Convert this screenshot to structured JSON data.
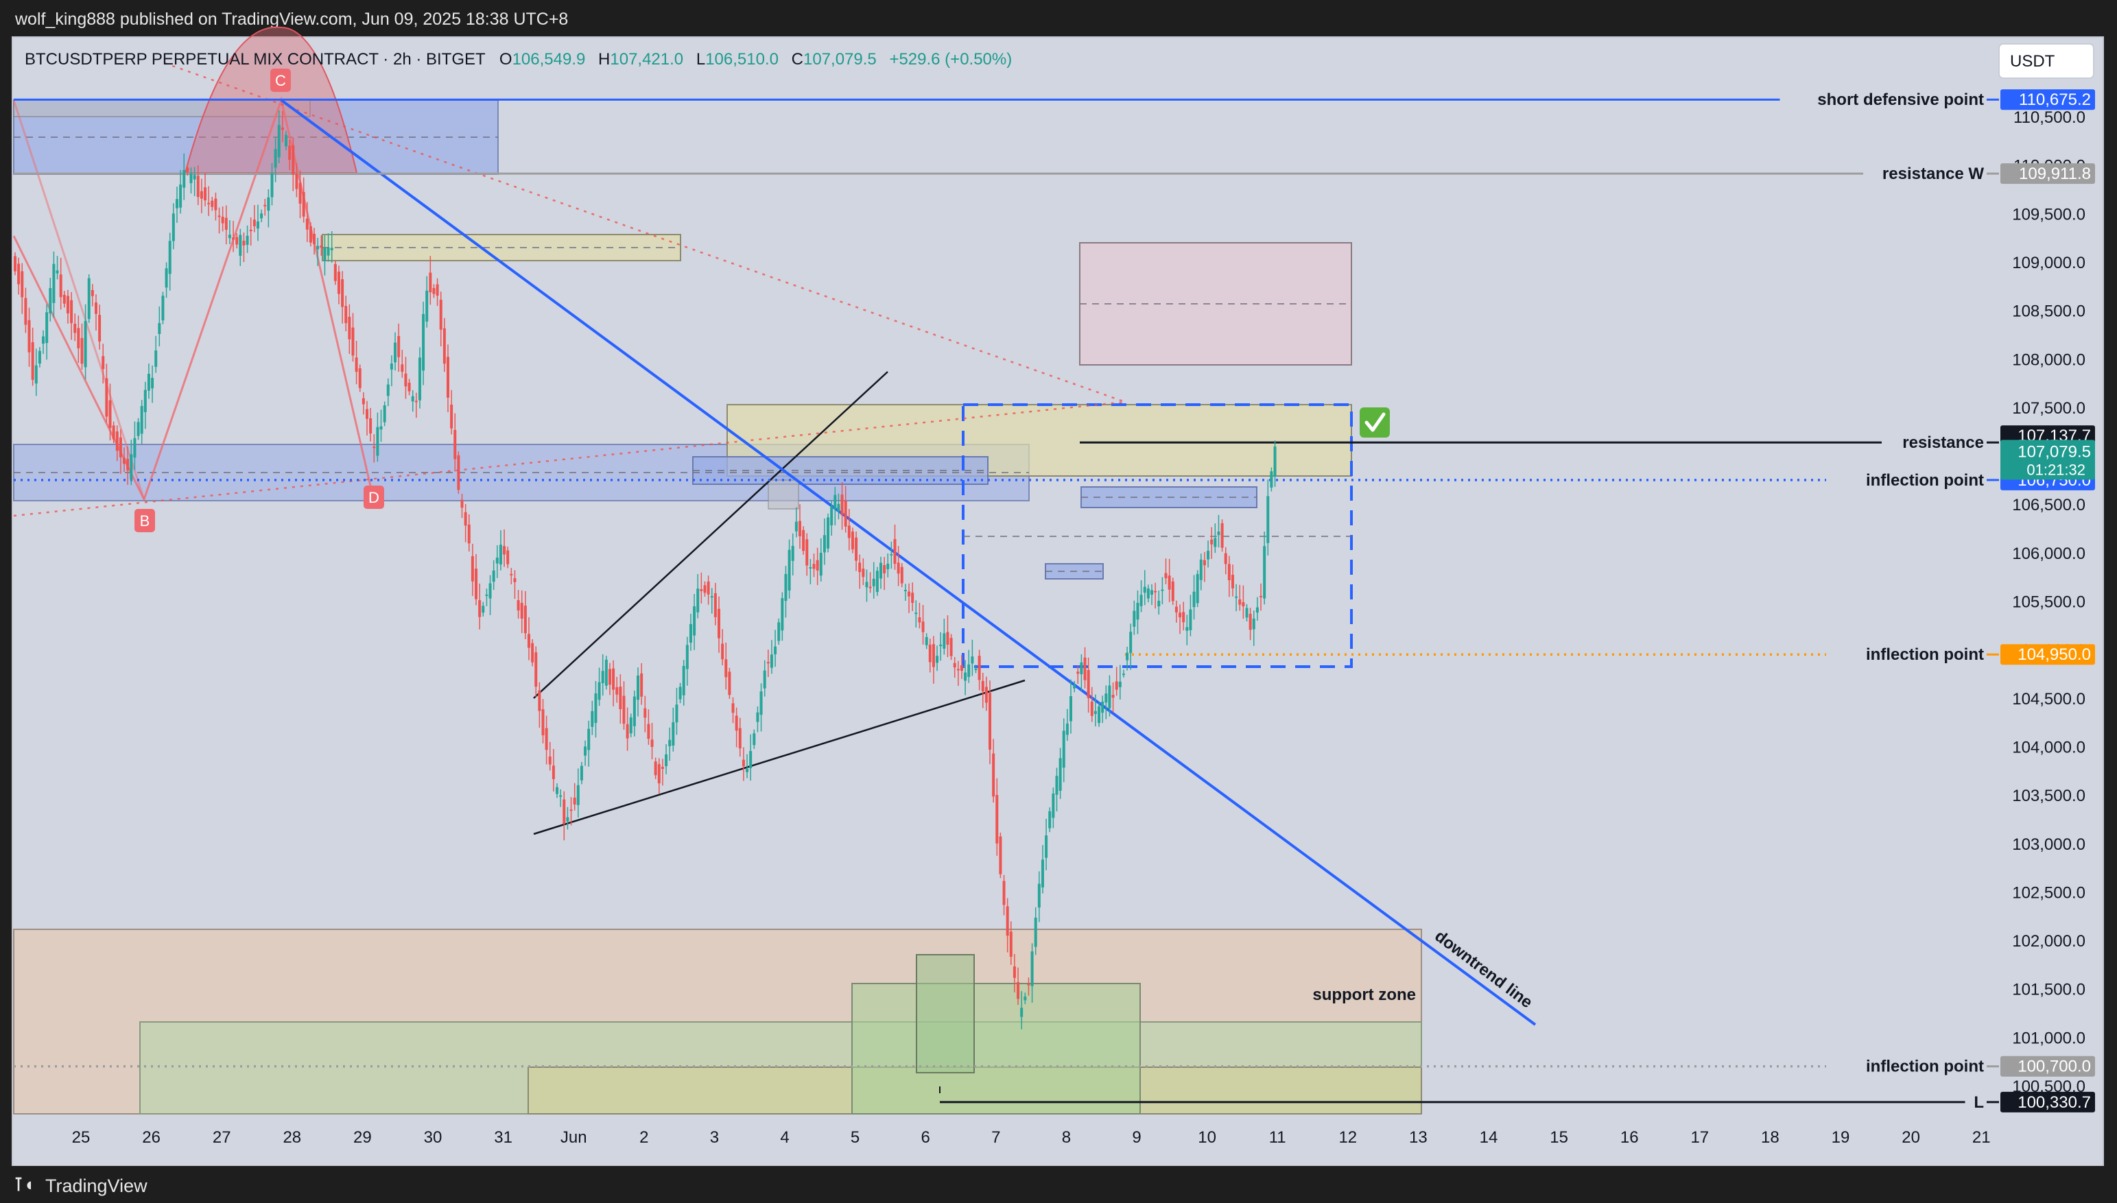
{
  "header": {
    "published": "wolf_king888 published on TradingView.com, Jun 09, 2025 18:38 UTC+8"
  },
  "footer": {
    "brand": "TradingView"
  },
  "legend": {
    "symbol": "BTCUSDTPERP PERPETUAL MIX CONTRACT · 2h · BITGET",
    "o_label": "O",
    "o": "106,549.9",
    "h_label": "H",
    "h": "107,421.0",
    "l_label": "L",
    "l": "106,510.0",
    "c_label": "C",
    "c": "107,079.5",
    "change": "+529.6 (+0.50%)"
  },
  "currency_button": "USDT",
  "colors": {
    "chart_bg": "#d2d6e0",
    "up": "#26a69a",
    "down": "#ef5350",
    "blue_line": "#2962ff",
    "orange": "#ff9800",
    "gray_label": "#9e9e9e",
    "black_label": "#131722"
  },
  "check_icon": "check-icon",
  "chart_data": {
    "type": "candlestick",
    "yaxis": {
      "ticks": [
        "110,500.0",
        "110,000.0",
        "109,500.0",
        "109,000.0",
        "108,500.0",
        "108,000.0",
        "107,500.0",
        "107,000.0",
        "106,500.0",
        "106,000.0",
        "105,500.0",
        "105,000.0",
        "104,500.0",
        "104,000.0",
        "103,500.0",
        "103,000.0",
        "102,500.0",
        "102,000.0",
        "101,500.0",
        "101,000.0",
        "100,500.0"
      ],
      "range": [
        100000,
        111000
      ]
    },
    "xaxis": {
      "ticks": [
        "25",
        "26",
        "27",
        "28",
        "29",
        "30",
        "31",
        "Jun",
        "2",
        "3",
        "4",
        "5",
        "6",
        "7",
        "8",
        "9",
        "10",
        "11",
        "12",
        "13",
        "14",
        "15",
        "16",
        "17",
        "18",
        "19",
        "20",
        "21"
      ]
    },
    "current_price": {
      "value": 107079.5,
      "label": "107,079.5",
      "countdown": "01:21:32"
    },
    "high_marker": {
      "value": 107137.7,
      "label": "107,137.7"
    },
    "levels": [
      {
        "name": "short defensive point",
        "value": 110675.2,
        "label": "110,675.2",
        "color": "#2962ff",
        "style": "solid"
      },
      {
        "name": "resistance W",
        "value": 109911.8,
        "label": "109,911.8",
        "color": "#9e9e9e",
        "style": "solid"
      },
      {
        "name": "resistance",
        "value": 107137.7,
        "label": "",
        "color": "#131722",
        "style": "solid"
      },
      {
        "name": "inflection point",
        "value": 106750.0,
        "label": "106,750.0",
        "color": "#2962ff",
        "style": "dotted"
      },
      {
        "name": "inflection point",
        "value": 104950.0,
        "label": "104,950.0",
        "color": "#ff9800",
        "style": "dotted"
      },
      {
        "name": "inflection point",
        "value": 100700.0,
        "label": "100,700.0",
        "color": "#9e9e9e",
        "style": "dotted"
      },
      {
        "name": "L",
        "value": 100330.7,
        "label": "100,330.7",
        "color": "#131722",
        "style": "solid"
      }
    ],
    "pattern_points": [
      "B",
      "C",
      "D"
    ],
    "annotations": [
      "support zone",
      "downtrend line"
    ],
    "price_path": [
      [
        0,
        109150
      ],
      [
        3,
        108700
      ],
      [
        6,
        107800
      ],
      [
        9,
        108200
      ],
      [
        12,
        108900
      ],
      [
        15,
        108650
      ],
      [
        18,
        108300
      ],
      [
        20,
        107950
      ],
      [
        22,
        108800
      ],
      [
        24,
        108400
      ],
      [
        27,
        107500
      ],
      [
        30,
        107100
      ],
      [
        33,
        106850
      ],
      [
        36,
        107300
      ],
      [
        40,
        107900
      ],
      [
        43,
        108700
      ],
      [
        46,
        109500
      ],
      [
        49,
        109900
      ],
      [
        52,
        109800
      ],
      [
        55,
        109700
      ],
      [
        58,
        109550
      ],
      [
        61,
        109300
      ],
      [
        64,
        109100
      ],
      [
        67,
        109350
      ],
      [
        70,
        109450
      ],
      [
        73,
        109650
      ],
      [
        76,
        110350
      ],
      [
        79,
        110150
      ],
      [
        82,
        109650
      ],
      [
        85,
        109200
      ],
      [
        88,
        109100
      ],
      [
        91,
        109050
      ],
      [
        94,
        108600
      ],
      [
        97,
        108050
      ],
      [
        100,
        107500
      ],
      [
        103,
        107000
      ],
      [
        106,
        107600
      ],
      [
        109,
        108200
      ],
      [
        112,
        107700
      ],
      [
        115,
        107500
      ],
      [
        118,
        108800
      ],
      [
        121,
        108700
      ],
      [
        124,
        107600
      ],
      [
        127,
        106600
      ],
      [
        130,
        106000
      ],
      [
        133,
        105400
      ],
      [
        136,
        105700
      ],
      [
        139,
        106050
      ],
      [
        142,
        105700
      ],
      [
        145,
        105400
      ],
      [
        148,
        104900
      ],
      [
        151,
        104100
      ],
      [
        154,
        103600
      ],
      [
        157,
        103300
      ],
      [
        160,
        103450
      ],
      [
        163,
        104000
      ],
      [
        166,
        104500
      ],
      [
        169,
        104800
      ],
      [
        172,
        104600
      ],
      [
        175,
        104100
      ],
      [
        178,
        104700
      ],
      [
        181,
        104000
      ],
      [
        184,
        103700
      ],
      [
        187,
        104100
      ],
      [
        190,
        104600
      ],
      [
        193,
        105200
      ],
      [
        196,
        105700
      ],
      [
        199,
        105600
      ],
      [
        202,
        104900
      ],
      [
        205,
        104300
      ],
      [
        208,
        103700
      ],
      [
        211,
        104200
      ],
      [
        214,
        104800
      ],
      [
        217,
        105000
      ],
      [
        220,
        105700
      ],
      [
        223,
        106400
      ],
      [
        226,
        105900
      ],
      [
        229,
        105800
      ],
      [
        232,
        106300
      ],
      [
        235,
        106600
      ],
      [
        238,
        106200
      ],
      [
        241,
        105800
      ],
      [
        244,
        105600
      ],
      [
        247,
        105800
      ],
      [
        250,
        106050
      ],
      [
        253,
        105700
      ],
      [
        256,
        105450
      ],
      [
        259,
        105100
      ],
      [
        262,
        104900
      ],
      [
        265,
        105200
      ],
      [
        268,
        104800
      ],
      [
        271,
        104700
      ],
      [
        274,
        104900
      ],
      [
        277,
        104500
      ],
      [
        280,
        103000
      ],
      [
        283,
        102000
      ],
      [
        286,
        101300
      ],
      [
        289,
        101600
      ],
      [
        292,
        102600
      ],
      [
        295,
        103300
      ],
      [
        298,
        103800
      ],
      [
        301,
        104600
      ],
      [
        304,
        104900
      ],
      [
        307,
        104300
      ],
      [
        310,
        104400
      ],
      [
        313,
        104600
      ],
      [
        316,
        104800
      ],
      [
        319,
        105400
      ],
      [
        322,
        105600
      ],
      [
        325,
        105500
      ],
      [
        328,
        105800
      ],
      [
        331,
        105400
      ],
      [
        334,
        105200
      ],
      [
        337,
        105700
      ],
      [
        340,
        106100
      ],
      [
        343,
        106250
      ],
      [
        346,
        105700
      ],
      [
        349,
        105400
      ],
      [
        352,
        105300
      ],
      [
        355,
        105600
      ],
      [
        357,
        106600
      ],
      [
        359,
        107079.5
      ]
    ]
  }
}
